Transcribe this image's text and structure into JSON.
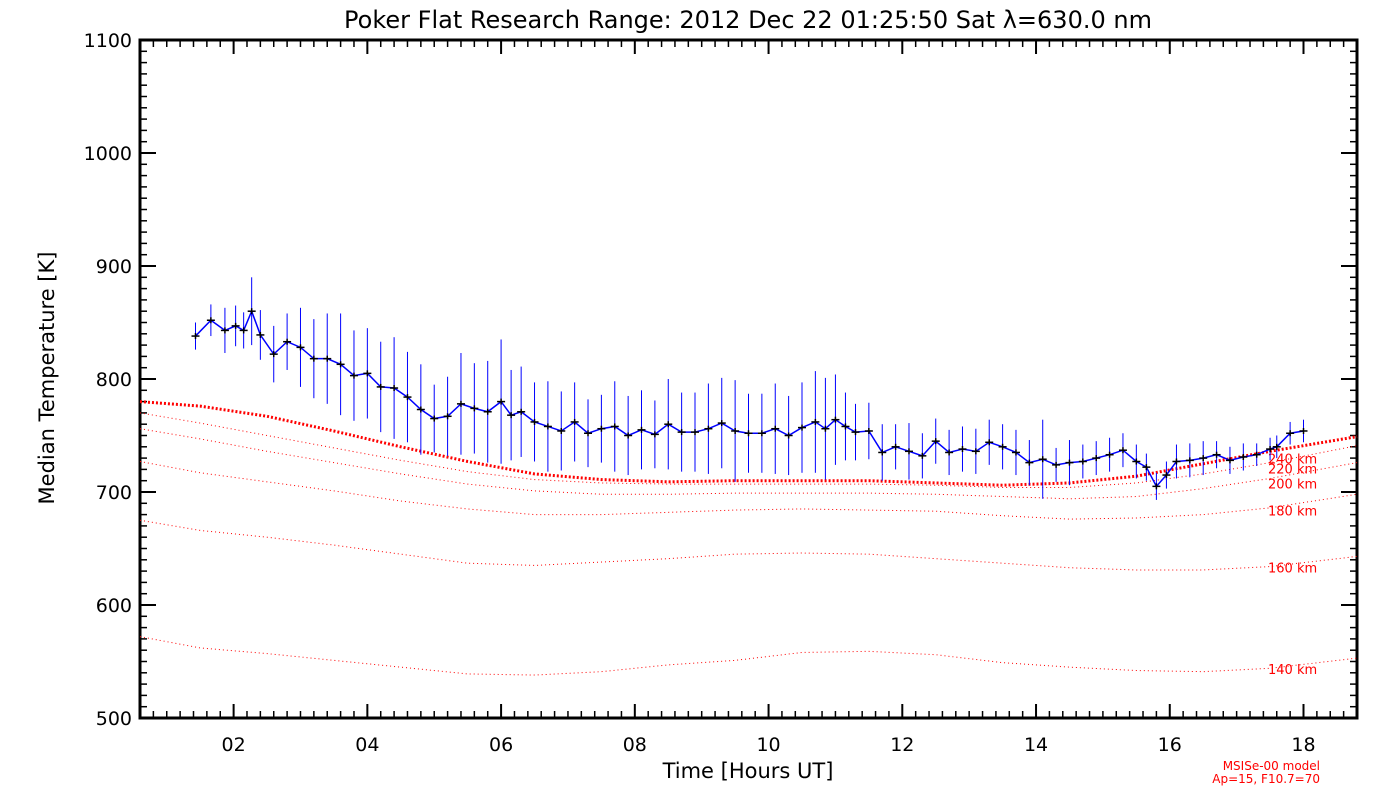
{
  "chart_data": {
    "type": "line",
    "title": "Poker Flat Research Range: 2012 Dec 22 01:25:50 Sat λ=630.0 nm",
    "xlabel": "Time [Hours UT]",
    "ylabel": "Median Temperature [K]",
    "xlim": [
      0.6,
      18.8
    ],
    "ylim": [
      500,
      1100
    ],
    "xticks": [
      2,
      4,
      6,
      8,
      10,
      12,
      14,
      16,
      18
    ],
    "xtick_labels": [
      "02",
      "04",
      "06",
      "08",
      "10",
      "12",
      "14",
      "16",
      "18"
    ],
    "yticks": [
      500,
      600,
      700,
      800,
      900,
      1000,
      1100
    ],
    "ytick_labels": [
      "500",
      "600",
      "700",
      "800",
      "900",
      "1000",
      "1100"
    ],
    "grid": false,
    "observed": {
      "name": "Median Temperature",
      "color": "#0000ff",
      "marker_color": "#000000",
      "x": [
        1.43,
        1.66,
        1.87,
        2.03,
        2.15,
        2.27,
        2.4,
        2.6,
        2.8,
        3.0,
        3.2,
        3.4,
        3.6,
        3.8,
        4.0,
        4.2,
        4.4,
        4.6,
        4.8,
        5.0,
        5.2,
        5.4,
        5.6,
        5.8,
        6.0,
        6.15,
        6.3,
        6.5,
        6.7,
        6.9,
        7.1,
        7.3,
        7.5,
        7.7,
        7.9,
        8.1,
        8.3,
        8.5,
        8.7,
        8.9,
        9.1,
        9.3,
        9.5,
        9.7,
        9.9,
        10.1,
        10.3,
        10.5,
        10.7,
        10.85,
        11.0,
        11.15,
        11.3,
        11.5,
        11.7,
        11.9,
        12.1,
        12.3,
        12.5,
        12.7,
        12.9,
        13.1,
        13.3,
        13.5,
        13.7,
        13.9,
        14.1,
        14.3,
        14.5,
        14.7,
        14.9,
        15.1,
        15.3,
        15.5,
        15.65,
        15.8,
        15.95,
        16.1,
        16.3,
        16.5,
        16.7,
        16.9,
        17.1,
        17.3,
        17.5,
        17.6,
        17.8,
        18.0
      ],
      "y": [
        838,
        852,
        843,
        847,
        843,
        860,
        839,
        822,
        833,
        828,
        818,
        818,
        813,
        803,
        805,
        793,
        792,
        784,
        773,
        765,
        767,
        778,
        774,
        771,
        780,
        768,
        771,
        762,
        758,
        754,
        762,
        752,
        756,
        758,
        750,
        755,
        751,
        760,
        753,
        753,
        756,
        761,
        754,
        752,
        752,
        756,
        750,
        757,
        762,
        756,
        764,
        758,
        753,
        754,
        735,
        740,
        736,
        732,
        745,
        735,
        738,
        736,
        744,
        740,
        735,
        726,
        729,
        724,
        726,
        727,
        730,
        733,
        737,
        727,
        722,
        705,
        715,
        727,
        728,
        730,
        733,
        728,
        731,
        733,
        738,
        740,
        752,
        754
      ],
      "err": [
        12,
        14,
        20,
        18,
        16,
        30,
        22,
        25,
        25,
        35,
        35,
        40,
        45,
        40,
        40,
        40,
        45,
        40,
        40,
        30,
        35,
        45,
        40,
        45,
        55,
        40,
        40,
        35,
        40,
        35,
        35,
        30,
        30,
        40,
        35,
        35,
        30,
        40,
        35,
        35,
        40,
        40,
        45,
        35,
        35,
        40,
        35,
        40,
        45,
        45,
        40,
        30,
        25,
        25,
        25,
        20,
        25,
        20,
        20,
        20,
        20,
        20,
        20,
        20,
        20,
        20,
        35,
        15,
        20,
        15,
        15,
        15,
        15,
        15,
        12,
        12,
        12,
        15,
        15,
        15,
        12,
        12,
        12,
        10,
        10,
        10,
        10,
        10
      ]
    },
    "model": {
      "name": "MSISe-00 model",
      "color": "#ff0000",
      "note": [
        "MSISe-00 model",
        "Ap=15, F10.7=70"
      ],
      "highlight": "240 km",
      "x": [
        0.6,
        1.5,
        2.5,
        3.5,
        4.5,
        5.5,
        6.5,
        7.5,
        8.5,
        9.5,
        10.5,
        11.5,
        12.5,
        13.5,
        14.5,
        15.5,
        16.5,
        17.5,
        18.8
      ],
      "curves": [
        {
          "label": "140 km",
          "values": [
            572,
            562,
            557,
            551,
            545,
            539,
            538,
            541,
            547,
            551,
            558,
            559,
            556,
            549,
            545,
            542,
            541,
            544,
            553
          ]
        },
        {
          "label": "160 km",
          "values": [
            675,
            666,
            660,
            653,
            645,
            637,
            635,
            638,
            641,
            645,
            646,
            645,
            641,
            637,
            633,
            631,
            631,
            634,
            643
          ]
        },
        {
          "label": "180 km",
          "values": [
            727,
            717,
            709,
            701,
            692,
            685,
            680,
            680,
            682,
            684,
            685,
            684,
            683,
            679,
            676,
            677,
            680,
            686,
            698
          ]
        },
        {
          "label": "200 km",
          "values": [
            756,
            747,
            736,
            726,
            716,
            707,
            701,
            698,
            698,
            699,
            699,
            699,
            698,
            696,
            694,
            696,
            703,
            712,
            726
          ]
        },
        {
          "label": "220 km",
          "values": [
            770,
            761,
            750,
            739,
            728,
            718,
            711,
            708,
            707,
            707,
            707,
            707,
            706,
            704,
            704,
            708,
            716,
            726,
            741
          ]
        },
        {
          "label": "240 km",
          "values": [
            780,
            776,
            767,
            754,
            740,
            727,
            716,
            711,
            709,
            710,
            710,
            710,
            708,
            706,
            708,
            714,
            725,
            736,
            749
          ]
        }
      ]
    }
  }
}
